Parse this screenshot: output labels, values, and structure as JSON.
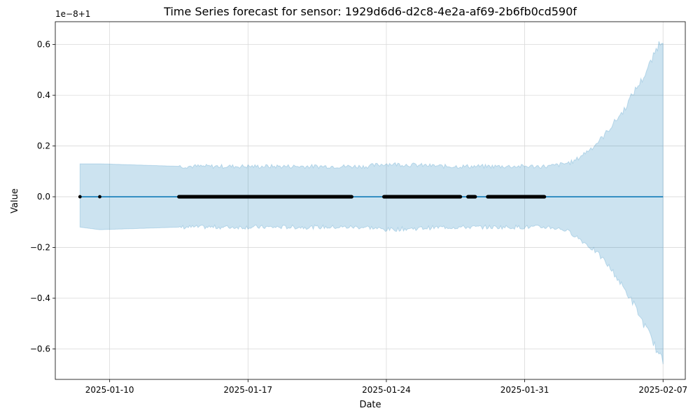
{
  "chart_data": {
    "type": "line",
    "title": "Time Series forecast for sensor: 1929d6d6-d2c8-4e2a-af69-2b6fb0cd590f",
    "xlabel": "Date",
    "ylabel": "Value",
    "y_offset_label": "1e−8+1",
    "x_axis": {
      "type": "date",
      "range": [
        "2025-01-07T06:00",
        "2025-02-08T03:00"
      ],
      "ticks": [
        "2025-01-10",
        "2025-01-17",
        "2025-01-24",
        "2025-01-31",
        "2025-02-07"
      ],
      "tick_labels": [
        "2025-01-10",
        "2025-01-17",
        "2025-01-24",
        "2025-01-31",
        "2025-02-07"
      ]
    },
    "y_axis": {
      "range": [
        -0.72,
        0.69
      ],
      "ticks": [
        -0.6,
        -0.4,
        -0.2,
        0.0,
        0.2,
        0.4,
        0.6
      ],
      "tick_labels": [
        "−0.6",
        "−0.4",
        "−0.2",
        "0.0",
        "0.2",
        "0.4",
        "0.6"
      ]
    },
    "grid": true,
    "forecast": {
      "x": [
        "2025-01-08T12:00",
        "2025-02-07T00:00"
      ],
      "y": [
        0.0,
        0.0
      ]
    },
    "uncertainty_band": {
      "x": [
        "2025-01-08T12:00",
        "2025-01-09T12:00",
        "2025-01-13T12:00",
        "2025-01-17T00:00",
        "2025-01-21T00:00",
        "2025-01-23T00:00",
        "2025-01-24T00:00",
        "2025-01-27T00:00",
        "2025-01-29T12:00",
        "2025-01-31T00:00",
        "2025-02-01T06:00",
        "2025-02-02T00:00",
        "2025-02-02T12:00",
        "2025-02-03T00:00",
        "2025-02-03T12:00",
        "2025-02-04T00:00",
        "2025-02-04T12:00",
        "2025-02-05T00:00",
        "2025-02-05T12:00",
        "2025-02-06T00:00",
        "2025-02-06T12:00",
        "2025-02-06T18:00",
        "2025-02-07T00:00"
      ],
      "upper": [
        0.13,
        0.13,
        0.12,
        0.12,
        0.12,
        0.12,
        0.13,
        0.12,
        0.12,
        0.12,
        0.12,
        0.13,
        0.14,
        0.17,
        0.2,
        0.24,
        0.29,
        0.34,
        0.41,
        0.47,
        0.55,
        0.6,
        0.62
      ],
      "lower": [
        -0.12,
        -0.13,
        -0.12,
        -0.12,
        -0.12,
        -0.12,
        -0.13,
        -0.12,
        -0.12,
        -0.12,
        -0.12,
        -0.13,
        -0.15,
        -0.18,
        -0.21,
        -0.25,
        -0.3,
        -0.36,
        -0.42,
        -0.5,
        -0.57,
        -0.62,
        -0.65
      ]
    },
    "observed_segments": [
      {
        "x": [
          "2025-01-08T12:00",
          "2025-01-08T12:00"
        ],
        "y": 0.0
      },
      {
        "x": [
          "2025-01-09T12:00",
          "2025-01-09T12:00"
        ],
        "y": 0.0
      },
      {
        "x": [
          "2025-01-13T12:00",
          "2025-01-22T06:00"
        ],
        "y": 0.0
      },
      {
        "x": [
          "2025-01-23T21:00",
          "2025-01-27T18:00"
        ],
        "y": 0.0
      },
      {
        "x": [
          "2025-01-28T03:00",
          "2025-01-28T12:00"
        ],
        "y": 0.0
      },
      {
        "x": [
          "2025-01-29T03:00",
          "2025-02-01T00:00"
        ],
        "y": 0.0
      }
    ],
    "colors": {
      "forecast_line": "#0072B2",
      "band_fill": "#0072B2",
      "points": "#000000",
      "grid": "#d9d9d9"
    }
  }
}
